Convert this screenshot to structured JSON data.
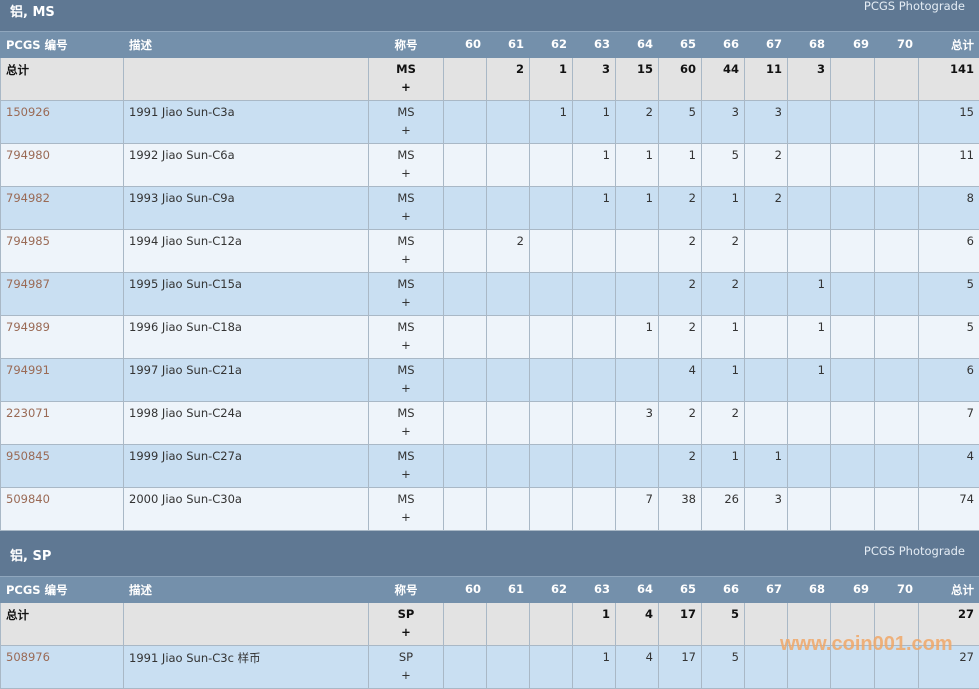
{
  "grades": [
    "60",
    "61",
    "62",
    "63",
    "64",
    "65",
    "66",
    "67",
    "68",
    "69",
    "70"
  ],
  "headers": {
    "pcgs": "PCGS 编号",
    "desc": "描述",
    "designation": "称号",
    "total": "总计"
  },
  "plus": "+",
  "sections": [
    {
      "title": "铝, MS",
      "photograde": "PCGS Photograde",
      "total_label": "总计",
      "total_designation": "MS",
      "total_counts": [
        "",
        "2",
        "1",
        "3",
        "15",
        "60",
        "44",
        "11",
        "3",
        "",
        ""
      ],
      "total": "141",
      "rows": [
        {
          "pcgs": "150926",
          "desc": "1991 Jiao Sun-C3a",
          "designation": "MS",
          "counts": [
            "",
            "",
            "1",
            "1",
            "2",
            "5",
            "3",
            "3",
            "",
            "",
            ""
          ],
          "total": "15"
        },
        {
          "pcgs": "794980",
          "desc": "1992 Jiao Sun-C6a",
          "designation": "MS",
          "counts": [
            "",
            "",
            "",
            "1",
            "1",
            "1",
            "5",
            "2",
            "",
            "",
            ""
          ],
          "total": "11"
        },
        {
          "pcgs": "794982",
          "desc": "1993 Jiao Sun-C9a",
          "designation": "MS",
          "counts": [
            "",
            "",
            "",
            "1",
            "1",
            "2",
            "1",
            "2",
            "",
            "",
            ""
          ],
          "total": "8"
        },
        {
          "pcgs": "794985",
          "desc": "1994 Jiao Sun-C12a",
          "designation": "MS",
          "counts": [
            "",
            "2",
            "",
            "",
            "",
            "2",
            "2",
            "",
            "",
            "",
            ""
          ],
          "total": "6"
        },
        {
          "pcgs": "794987",
          "desc": "1995 Jiao Sun-C15a",
          "designation": "MS",
          "counts": [
            "",
            "",
            "",
            "",
            "",
            "2",
            "2",
            "",
            "1",
            "",
            ""
          ],
          "total": "5"
        },
        {
          "pcgs": "794989",
          "desc": "1996 Jiao Sun-C18a",
          "designation": "MS",
          "counts": [
            "",
            "",
            "",
            "",
            "1",
            "2",
            "1",
            "",
            "1",
            "",
            ""
          ],
          "total": "5"
        },
        {
          "pcgs": "794991",
          "desc": "1997 Jiao Sun-C21a",
          "designation": "MS",
          "counts": [
            "",
            "",
            "",
            "",
            "",
            "4",
            "1",
            "",
            "1",
            "",
            ""
          ],
          "total": "6"
        },
        {
          "pcgs": "223071",
          "desc": "1998 Jiao Sun-C24a",
          "designation": "MS",
          "counts": [
            "",
            "",
            "",
            "",
            "3",
            "2",
            "2",
            "",
            "",
            "",
            ""
          ],
          "total": "7"
        },
        {
          "pcgs": "950845",
          "desc": "1999 Jiao Sun-C27a",
          "designation": "MS",
          "counts": [
            "",
            "",
            "",
            "",
            "",
            "2",
            "1",
            "1",
            "",
            "",
            ""
          ],
          "total": "4"
        },
        {
          "pcgs": "509840",
          "desc": "2000 Jiao Sun-C30a",
          "designation": "MS",
          "counts": [
            "",
            "",
            "",
            "",
            "7",
            "38",
            "26",
            "3",
            "",
            "",
            ""
          ],
          "total": "74"
        }
      ]
    },
    {
      "title": "铝, SP",
      "photograde": "PCGS Photograde",
      "total_label": "总计",
      "total_designation": "SP",
      "total_counts": [
        "",
        "",
        "",
        "1",
        "4",
        "17",
        "5",
        "",
        "",
        "",
        ""
      ],
      "total": "27",
      "rows": [
        {
          "pcgs": "508976",
          "desc": "1991 Jiao Sun-C3c 样币",
          "designation": "SP",
          "counts": [
            "",
            "",
            "",
            "1",
            "4",
            "17",
            "5",
            "",
            "",
            "",
            ""
          ],
          "total": "27"
        }
      ]
    }
  ],
  "watermark": "www.coin001.com",
  "colors": {
    "title_bar": "#5f7893",
    "header": "#7490ab",
    "row_a": "#c9dff2",
    "row_b": "#eef4fa",
    "total_row": "#e3e3e3",
    "link": "#9a6a55"
  }
}
